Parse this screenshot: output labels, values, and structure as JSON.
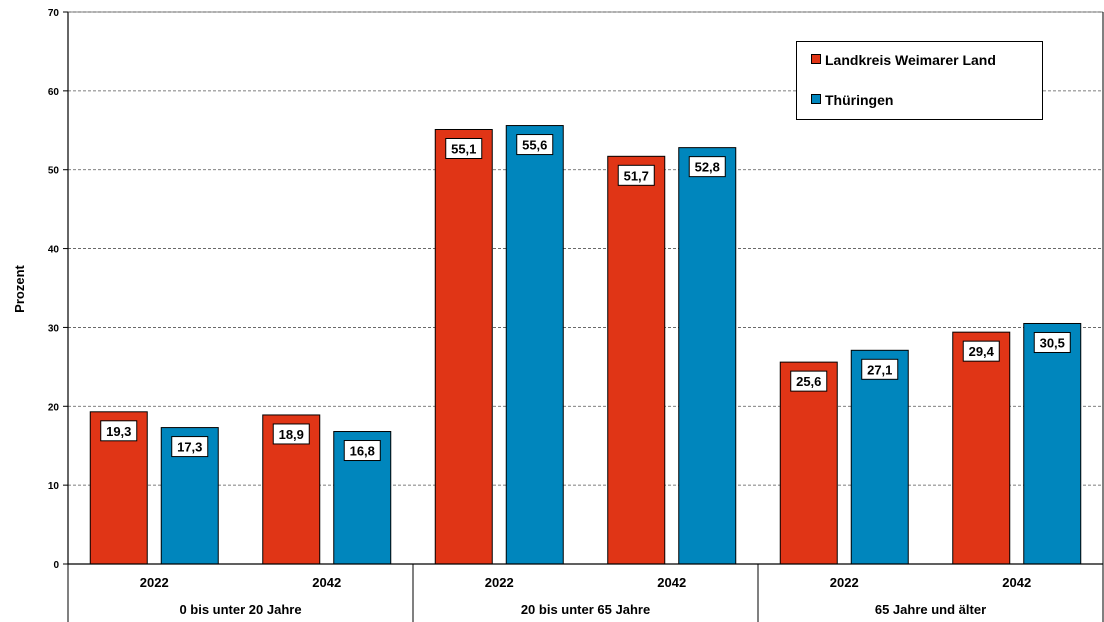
{
  "colors": {
    "series_red": "#e03516",
    "series_blue": "#0086bd"
  },
  "chart_data": {
    "type": "bar",
    "title": "",
    "ylabel": "Prozent",
    "ylim": [
      0,
      70
    ],
    "yticks": [
      "0",
      "10",
      "20",
      "30",
      "40",
      "50",
      "60",
      "70"
    ],
    "grid": true,
    "legend_placement": "top-right",
    "groups": [
      {
        "label": "0 bis unter 20 Jahre",
        "years": [
          "2022",
          "2042"
        ]
      },
      {
        "label": "20 bis unter 65 Jahre",
        "years": [
          "2022",
          "2042"
        ]
      },
      {
        "label": "65 Jahre und älter",
        "years": [
          "2022",
          "2042"
        ]
      }
    ],
    "categories": [
      "2022",
      "2042",
      "2022",
      "2042",
      "2022",
      "2042"
    ],
    "series": [
      {
        "name": "Landkreis Weimarer Land",
        "color": "#e03516",
        "values": [
          19.3,
          18.9,
          55.1,
          51.7,
          25.6,
          29.4
        ],
        "labels": [
          "19,3",
          "18,9",
          "55,1",
          "51,7",
          "25,6",
          "29,4"
        ]
      },
      {
        "name": "Thüringen",
        "color": "#0086bd",
        "values": [
          17.3,
          16.8,
          55.6,
          52.8,
          27.1,
          30.5
        ],
        "labels": [
          "17,3",
          "16,8",
          "55,6",
          "52,8",
          "27,1",
          "30,5"
        ]
      }
    ]
  }
}
